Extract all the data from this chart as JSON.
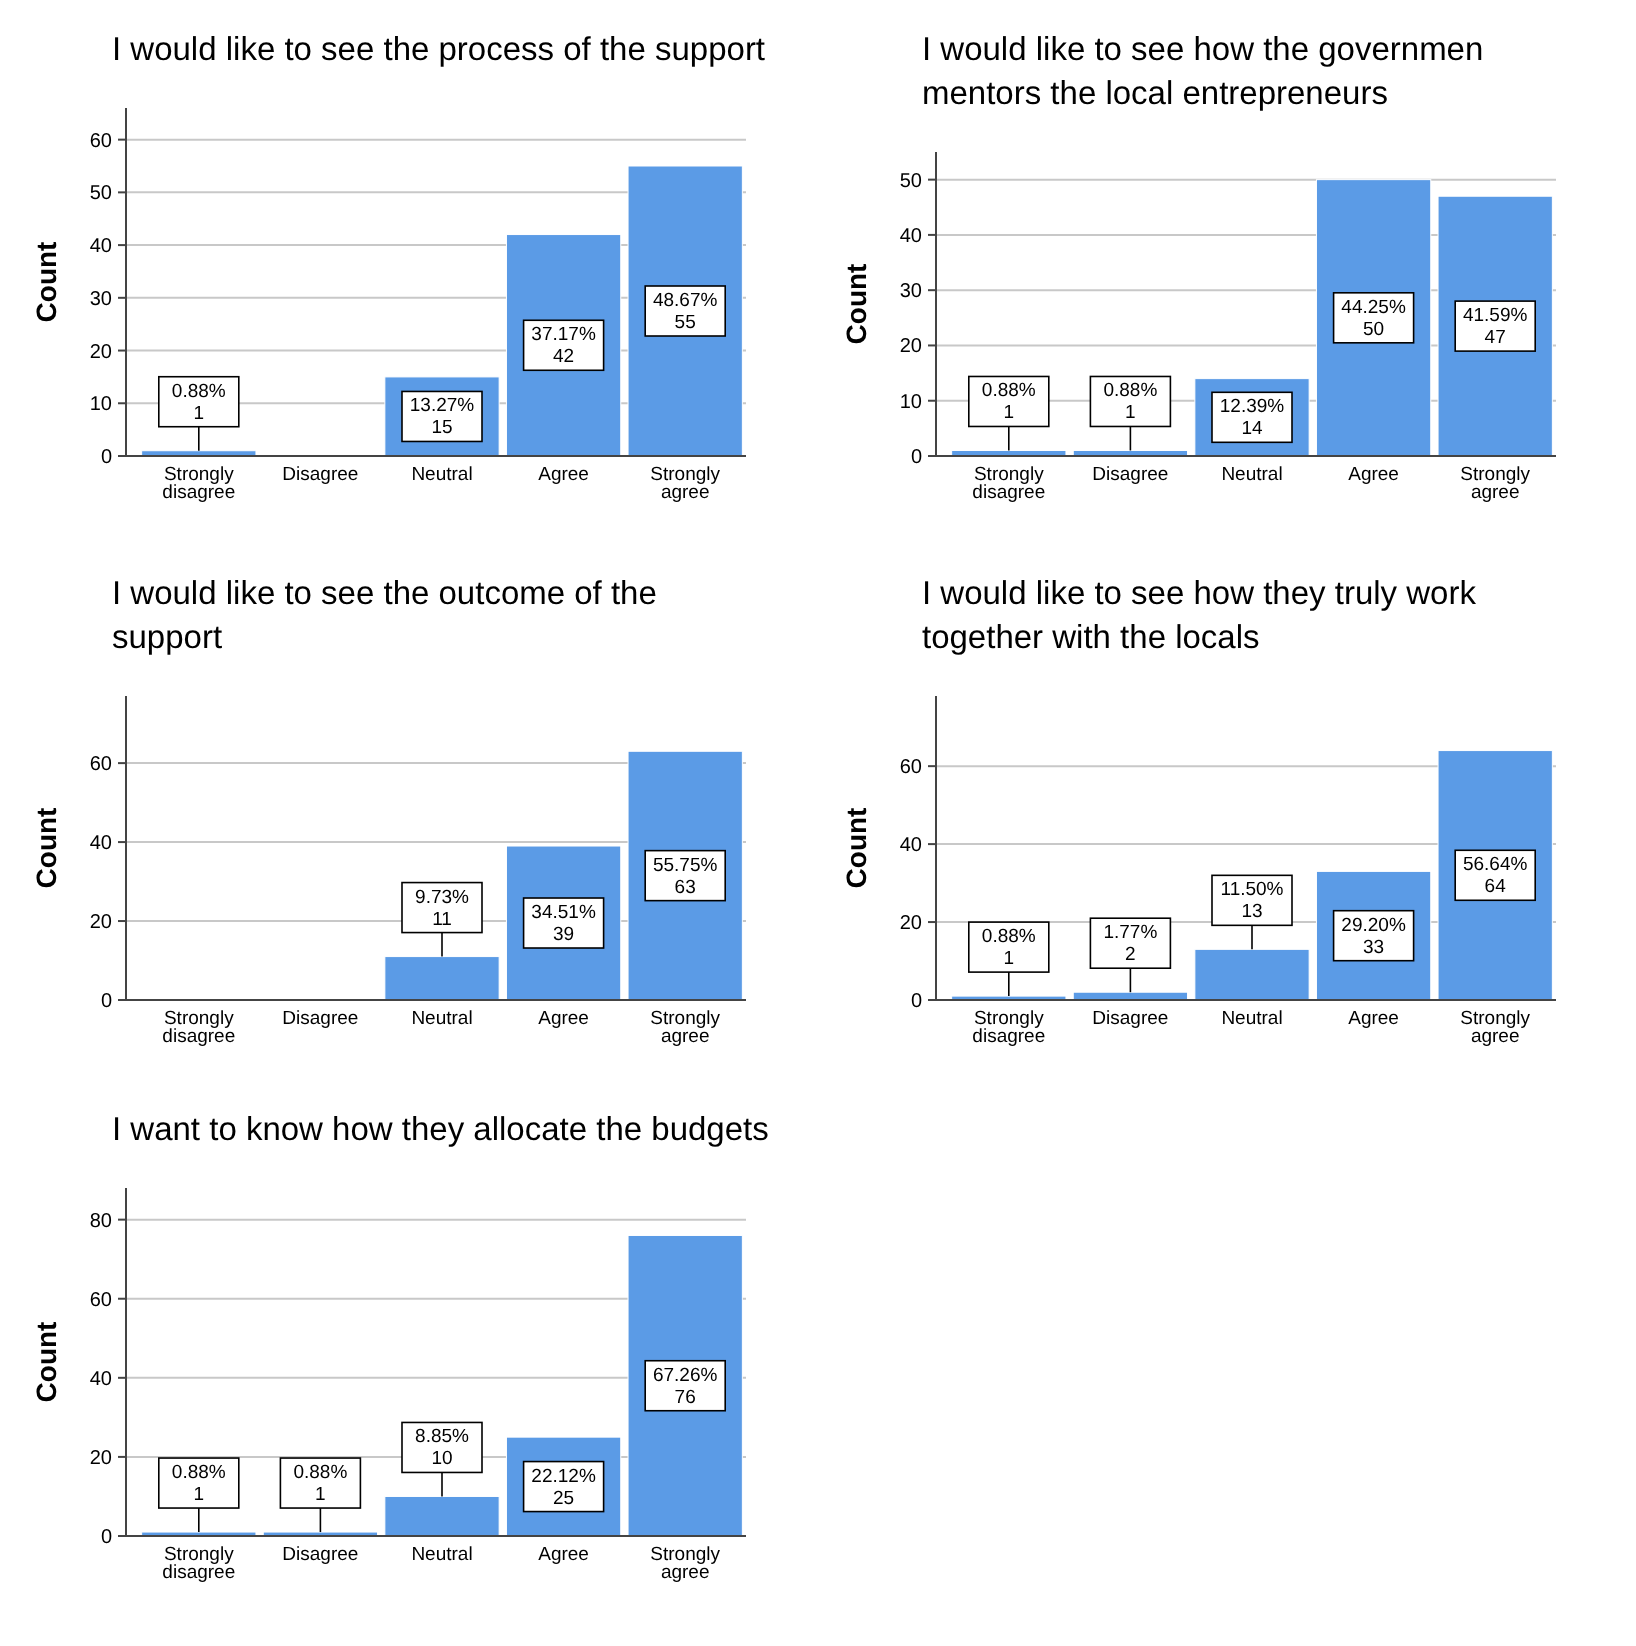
{
  "chart_data": [
    {
      "type": "bar",
      "title": "I would like to see the process of the support",
      "ylabel": "Count",
      "categories": [
        "Strongly disagree",
        "Disagree",
        "Neutral",
        "Agree",
        "Strongly agree"
      ],
      "values": [
        1,
        0,
        15,
        42,
        55
      ],
      "value_labels": [
        "0.88%\n1",
        null,
        "13.27%\n15",
        "37.17%\n42",
        "48.67%\n55"
      ],
      "color": "#5b9be6",
      "ylim": [
        0,
        66
      ],
      "yticks": [
        0,
        10,
        20,
        30,
        40,
        50,
        60
      ],
      "grid": "y"
    },
    {
      "type": "bar",
      "title": "I would like to see how the governmen\nmentors the local entrepreneurs",
      "ylabel": "Count",
      "categories": [
        "Strongly disagree",
        "Disagree",
        "Neutral",
        "Agree",
        "Strongly agree"
      ],
      "values": [
        1,
        1,
        14,
        50,
        47
      ],
      "value_labels": [
        "0.88%\n1",
        "0.88%\n1",
        "12.39%\n14",
        "44.25%\n50",
        "41.59%\n47"
      ],
      "color": "#5b9be6",
      "ylim": [
        0,
        55
      ],
      "yticks": [
        0,
        10,
        20,
        30,
        40,
        50
      ],
      "grid": "y"
    },
    {
      "type": "bar",
      "title": "I would like to see the outcome of the\nsupport",
      "ylabel": "Count",
      "categories": [
        "Strongly disagree",
        "Disagree",
        "Neutral",
        "Agree",
        "Strongly agree"
      ],
      "values": [
        0,
        0,
        11,
        39,
        63
      ],
      "value_labels": [
        null,
        null,
        "9.73%\n11",
        "34.51%\n39",
        "55.75%\n63"
      ],
      "color": "#5b9be6",
      "ylim": [
        0,
        77
      ],
      "yticks": [
        0,
        20,
        40,
        60
      ],
      "grid": "y"
    },
    {
      "type": "bar",
      "title": "I would like to see how they truly work\ntogether with the locals",
      "ylabel": "Count",
      "categories": [
        "Strongly disagree",
        "Disagree",
        "Neutral",
        "Agree",
        "Strongly agree"
      ],
      "values": [
        1,
        2,
        13,
        33,
        64
      ],
      "value_labels": [
        "0.88%\n1",
        "1.77%\n2",
        "11.50%\n13",
        "29.20%\n33",
        "56.64%\n64"
      ],
      "color": "#5b9be6",
      "ylim": [
        0,
        78
      ],
      "yticks": [
        0,
        20,
        40,
        60
      ],
      "grid": "y"
    },
    {
      "type": "bar",
      "title": "I want to know how they allocate the budgets",
      "ylabel": "Count",
      "categories": [
        "Strongly disagree",
        "Disagree",
        "Neutral",
        "Agree",
        "Strongly agree"
      ],
      "values": [
        1,
        1,
        10,
        25,
        76
      ],
      "value_labels": [
        "0.88%\n1",
        "0.88%\n1",
        "8.85%\n10",
        "22.12%\n25",
        "67.26%\n76"
      ],
      "color": "#5b9be6",
      "ylim": [
        0,
        88
      ],
      "yticks": [
        0,
        20,
        40,
        60,
        80
      ],
      "grid": "y"
    }
  ]
}
